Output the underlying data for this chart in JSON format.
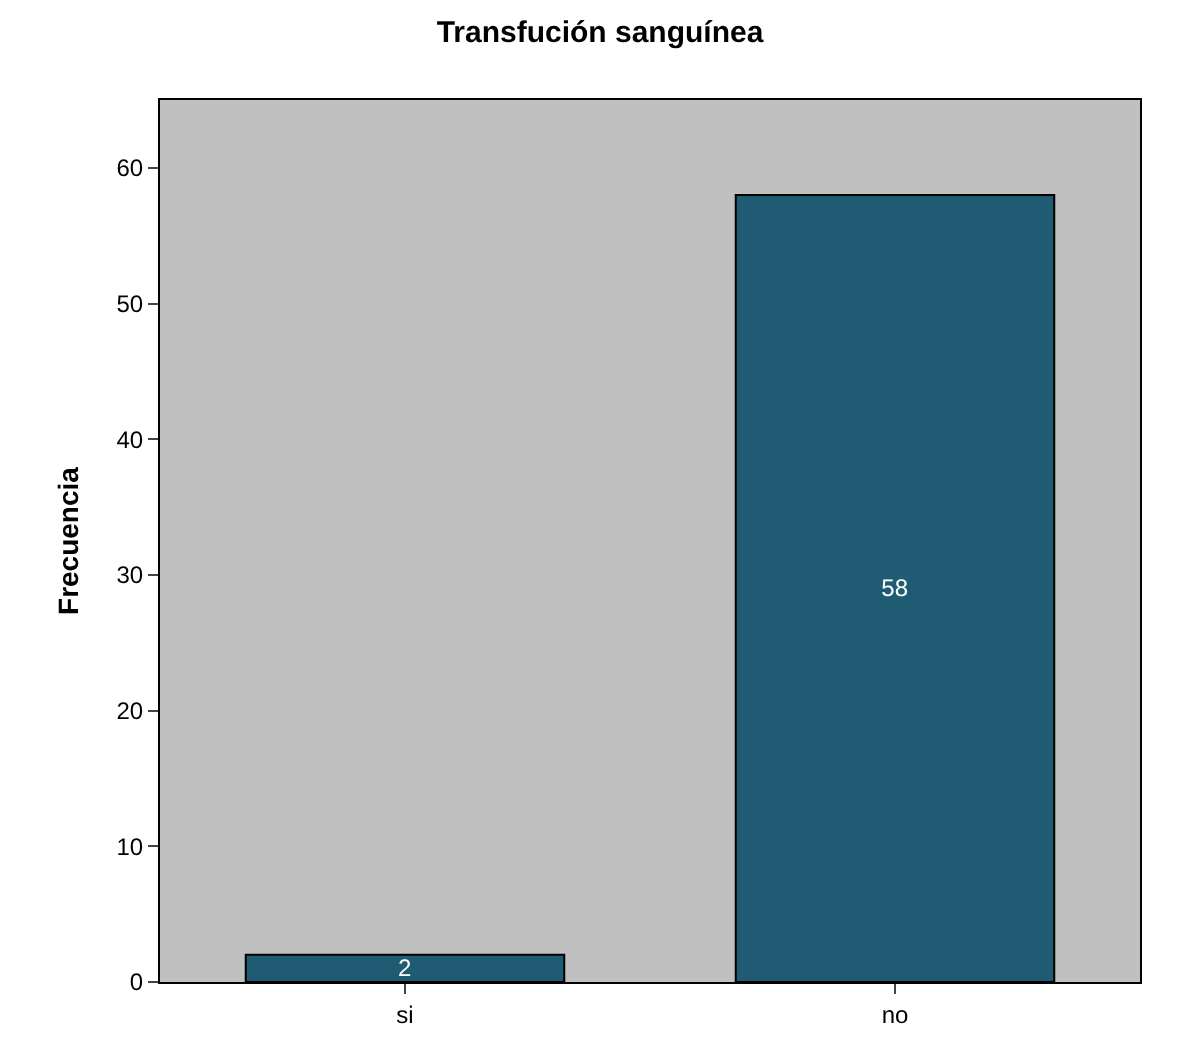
{
  "chart_data": {
    "type": "bar",
    "title": "Transfución sanguínea",
    "ylabel": "Frecuencia",
    "categories": [
      "si",
      "no"
    ],
    "values": [
      2,
      58
    ],
    "color": "#1f5c73",
    "ylim": [
      0,
      65
    ],
    "yticks": [
      0,
      10,
      20,
      30,
      40,
      50,
      60
    ],
    "data_labels": true,
    "grid": false,
    "legend": false
  }
}
